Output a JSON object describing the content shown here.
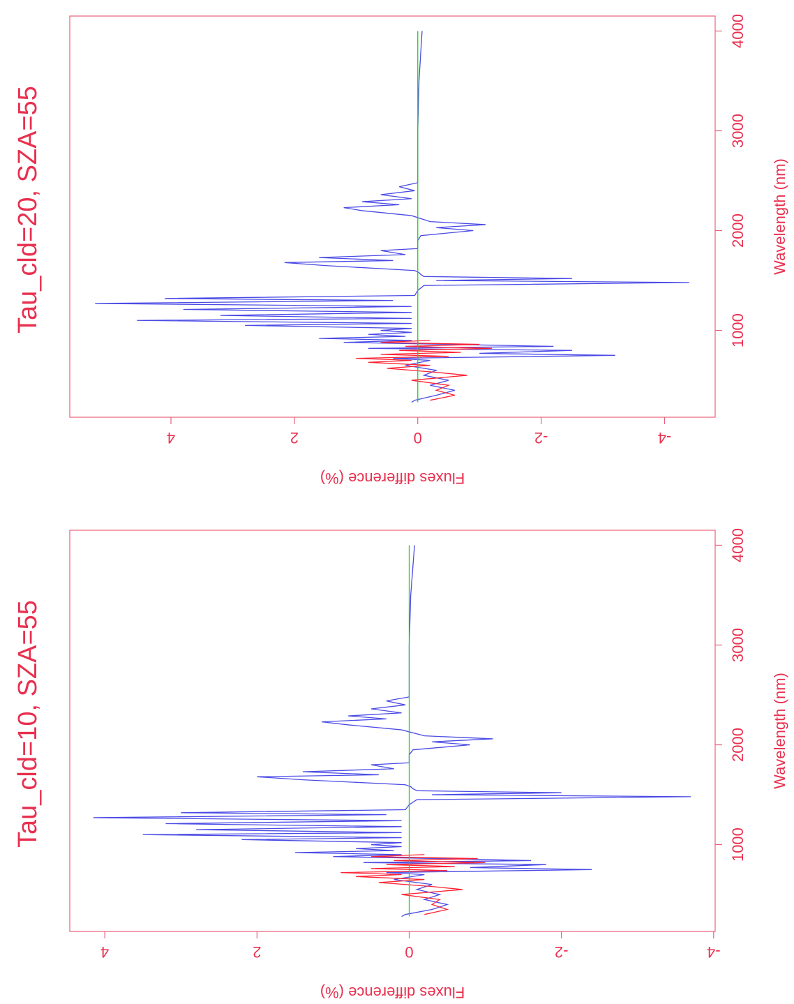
{
  "chart_data": [
    {
      "type": "line",
      "title": "Tau_cld=20, SZA=55",
      "x_label": "Wavelength (nm)",
      "y_label": "Fluxes difference (%)",
      "xlim": [
        130,
        4150
      ],
      "xticks": [
        1000,
        2000,
        3000,
        4000
      ],
      "ylim": [
        -4.82,
        5.64
      ],
      "yticks": [
        -4,
        -2,
        0,
        2,
        4
      ],
      "series": [
        {
          "color": "#4b4be6",
          "x": [
            280,
            300,
            350,
            400,
            450,
            500,
            550,
            600,
            650,
            700,
            720,
            750,
            770,
            800,
            820,
            840,
            860,
            880,
            900,
            920,
            940,
            960,
            980,
            1000,
            1020,
            1050,
            1070,
            1100,
            1120,
            1150,
            1180,
            1210,
            1240,
            1270,
            1300,
            1320,
            1350,
            1400,
            1450,
            1480,
            1500,
            1520,
            1540,
            1560,
            1580,
            1600,
            1650,
            1680,
            1700,
            1730,
            1760,
            1800,
            1820,
            1900,
            1950,
            2000,
            2030,
            2060,
            2090,
            2150,
            2200,
            2230,
            2260,
            2290,
            2320,
            2360,
            2400,
            2440,
            2480,
            2500,
            3000,
            3500,
            3800,
            4000
          ],
          "values": [
            0.1,
            0.05,
            -0.3,
            -0.6,
            -0.2,
            -0.5,
            -0.1,
            -0.3,
            0.2,
            -0.2,
            0.4,
            -3.2,
            -1.0,
            -2.5,
            0.8,
            -2.2,
            -0.5,
            1.2,
            0.1,
            1.6,
            0.2,
            0.8,
            0.1,
            0.6,
            0.1,
            2.8,
            0.1,
            4.55,
            0.1,
            3.2,
            0.1,
            3.8,
            0.1,
            5.23,
            0.4,
            4.1,
            0.05,
            0,
            -0.1,
            -4.4,
            -0.3,
            -2.5,
            -0.1,
            -0.05,
            -0.02,
            0.05,
            1.5,
            2.16,
            0.4,
            1.6,
            0.2,
            0.6,
            0,
            0,
            -0.05,
            -0.9,
            -0.3,
            -1.1,
            -0.2,
            0.1,
            0.9,
            1.2,
            0.3,
            0.9,
            0.1,
            0.6,
            0.05,
            0.3,
            0,
            0,
            0,
            -0.02,
            -0.05,
            -0.07
          ]
        },
        {
          "color": "#ff2233",
          "x": [
            300,
            350,
            400,
            450,
            500,
            550,
            580,
            620,
            650,
            680,
            700,
            720,
            740,
            760,
            780,
            800,
            820,
            840,
            860,
            880,
            900
          ],
          "values": [
            -0.2,
            -0.6,
            -0.3,
            -0.5,
            0.1,
            -0.8,
            -0.3,
            0.5,
            -0.2,
            0.8,
            0.1,
            1.0,
            -0.5,
            0.6,
            -0.7,
            0.3,
            -1.2,
            0.2,
            -1.0,
            0.6,
            -0.2
          ]
        },
        {
          "color": "#22cc22",
          "x": [
            280,
            4000
          ],
          "values": [
            0,
            0
          ]
        }
      ]
    },
    {
      "type": "line",
      "title": "Tau_cld=10, SZA=55",
      "x_label": "Wavelength (nm)",
      "y_label": "Fluxes difference (%)",
      "xlim": [
        130,
        4150
      ],
      "xticks": [
        1000,
        2000,
        3000,
        4000
      ],
      "ylim": [
        -4.02,
        4.46
      ],
      "yticks": [
        -4,
        -2,
        0,
        2,
        4
      ],
      "series": [
        {
          "color": "#4b4be6",
          "x": [
            280,
            300,
            350,
            400,
            450,
            500,
            550,
            600,
            650,
            700,
            720,
            750,
            770,
            800,
            820,
            840,
            860,
            880,
            900,
            920,
            940,
            960,
            980,
            1000,
            1020,
            1050,
            1070,
            1100,
            1120,
            1150,
            1180,
            1210,
            1240,
            1270,
            1300,
            1320,
            1350,
            1400,
            1450,
            1480,
            1500,
            1520,
            1540,
            1560,
            1580,
            1600,
            1650,
            1680,
            1700,
            1730,
            1760,
            1800,
            1820,
            1900,
            1950,
            2000,
            2030,
            2060,
            2090,
            2150,
            2200,
            2230,
            2260,
            2290,
            2320,
            2360,
            2400,
            2440,
            2480,
            2500,
            3000,
            3500,
            3800,
            4000
          ],
          "values": [
            0.1,
            0.05,
            -0.3,
            -0.5,
            -0.2,
            -0.4,
            -0.1,
            -0.3,
            0.2,
            -0.2,
            0.3,
            -2.4,
            -0.8,
            -1.8,
            0.6,
            -1.6,
            -0.4,
            1.0,
            0.1,
            1.5,
            0.2,
            0.7,
            0.1,
            0.5,
            0.1,
            2.2,
            0.1,
            3.5,
            0.1,
            2.8,
            0.1,
            3.2,
            0.1,
            4.15,
            0.3,
            3.0,
            0.05,
            0,
            -0.1,
            -3.7,
            -0.3,
            -2.0,
            -0.1,
            -0.05,
            -0.02,
            0.05,
            1.4,
            2.0,
            0.4,
            1.4,
            0.2,
            0.5,
            0,
            0,
            -0.05,
            -0.8,
            -0.3,
            -1.1,
            -0.2,
            0.1,
            0.8,
            1.15,
            0.3,
            0.8,
            0.1,
            0.5,
            0.05,
            0.3,
            0,
            0,
            0,
            -0.02,
            -0.05,
            -0.07
          ]
        },
        {
          "color": "#ff2233",
          "x": [
            300,
            350,
            400,
            450,
            500,
            550,
            580,
            620,
            650,
            680,
            700,
            720,
            740,
            760,
            780,
            800,
            820,
            840,
            860,
            880,
            900
          ],
          "values": [
            -0.2,
            -0.5,
            -0.3,
            -0.4,
            0.1,
            -0.7,
            -0.3,
            0.4,
            -0.2,
            0.7,
            0.1,
            0.9,
            -0.5,
            0.5,
            -0.6,
            0.3,
            -1.0,
            0.2,
            -0.9,
            0.5,
            -0.2
          ]
        },
        {
          "color": "#22cc22",
          "x": [
            280,
            4000
          ],
          "values": [
            0,
            0
          ]
        }
      ]
    }
  ]
}
